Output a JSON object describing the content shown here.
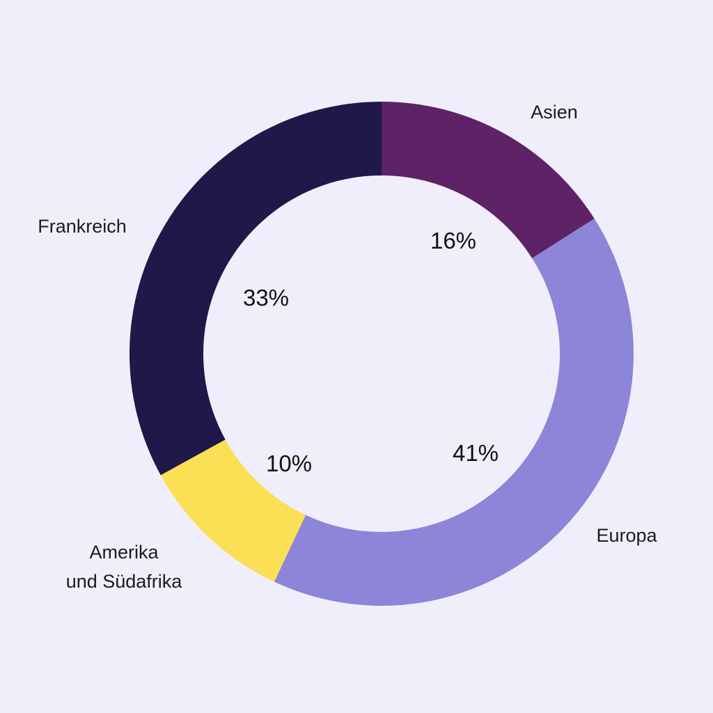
{
  "chart_data": {
    "type": "pie",
    "variant": "donut",
    "slices": [
      {
        "label": "Asien",
        "label_lines": [
          "Asien"
        ],
        "value": 16,
        "value_label": "16%",
        "color": "#5e2266"
      },
      {
        "label": "Europa",
        "label_lines": [
          "Europa"
        ],
        "value": 41,
        "value_label": "41%",
        "color": "#8c85d8"
      },
      {
        "label": "Amerika und Südafrika",
        "label_lines": [
          "Amerika",
          "und Südafrika"
        ],
        "value": 10,
        "value_label": "10%",
        "color": "#fbdf55"
      },
      {
        "label": "Frankreich",
        "label_lines": [
          "Frankreich"
        ],
        "value": 33,
        "value_label": "33%",
        "color": "#1f1848"
      }
    ],
    "start": "top",
    "direction": "clockwise",
    "background_color": "#f1eefc"
  }
}
